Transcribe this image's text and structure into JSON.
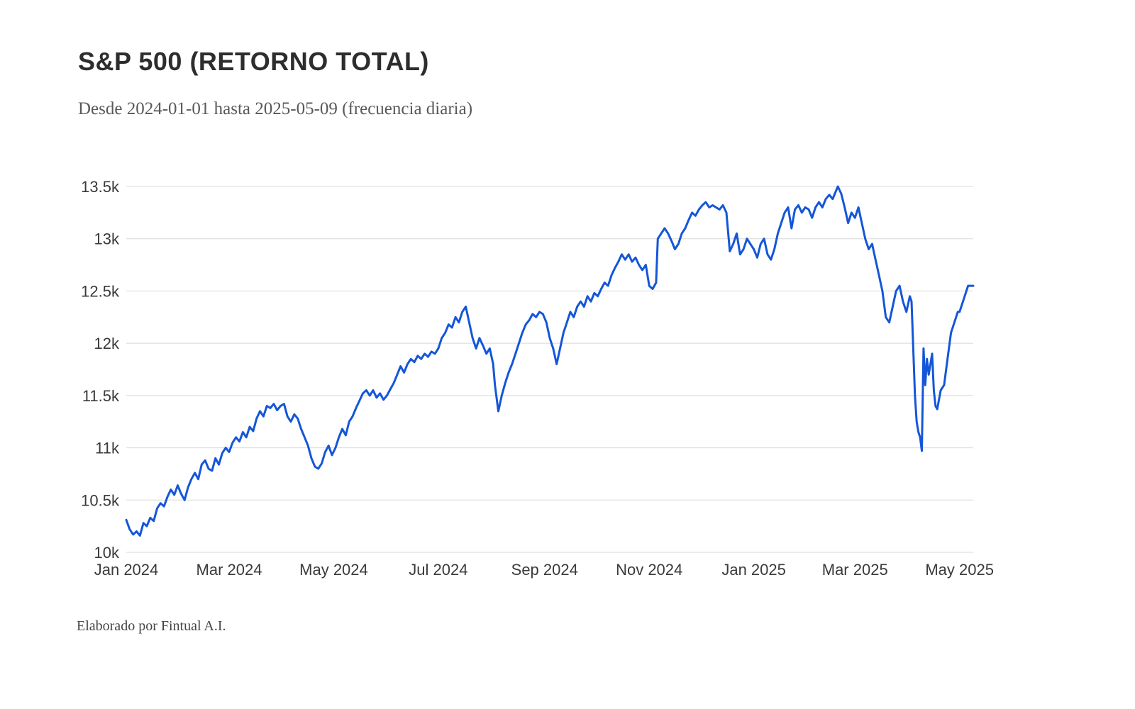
{
  "header": {
    "title": "S&P 500 (RETORNO TOTAL)",
    "subtitle": "Desde 2024-01-01 hasta 2025-05-09 (frecuencia diaria)"
  },
  "footer": {
    "credit": "Elaborado por Fintual A.I."
  },
  "chart_data": {
    "type": "line",
    "title": "S&P 500 (RETORNO TOTAL)",
    "subtitle": "Desde 2024-01-01 hasta 2025-05-09 (frecuencia diaria)",
    "x_unit": "days since 2024-01-01",
    "x_range": [
      0,
      494
    ],
    "ylim": [
      10000,
      13500
    ],
    "grid": "horizontal-only",
    "legend": "none",
    "line_color": "#1456d8",
    "grid_color": "#d8d8d8",
    "axis_text_color": "#3a3a3a",
    "y_ticks": [
      {
        "value": 10000,
        "label": "10k"
      },
      {
        "value": 10500,
        "label": "10.5k"
      },
      {
        "value": 11000,
        "label": "11k"
      },
      {
        "value": 11500,
        "label": "11.5k"
      },
      {
        "value": 12000,
        "label": "12k"
      },
      {
        "value": 12500,
        "label": "12.5k"
      },
      {
        "value": 13000,
        "label": "13k"
      },
      {
        "value": 13500,
        "label": "13.5k"
      }
    ],
    "x_ticks": [
      {
        "day": 0,
        "label": "Jan 2024"
      },
      {
        "day": 60,
        "label": "Mar 2024"
      },
      {
        "day": 121,
        "label": "May 2024"
      },
      {
        "day": 182,
        "label": "Jul 2024"
      },
      {
        "day": 244,
        "label": "Sep 2024"
      },
      {
        "day": 305,
        "label": "Nov 2024"
      },
      {
        "day": 366,
        "label": "Jan 2025"
      },
      {
        "day": 425,
        "label": "Mar 2025"
      },
      {
        "day": 486,
        "label": "May 2025"
      }
    ],
    "series": [
      {
        "name": "S&P 500 Retorno Total",
        "points": [
          [
            0,
            10310
          ],
          [
            2,
            10220
          ],
          [
            4,
            10170
          ],
          [
            6,
            10200
          ],
          [
            8,
            10160
          ],
          [
            10,
            10280
          ],
          [
            12,
            10250
          ],
          [
            14,
            10330
          ],
          [
            16,
            10300
          ],
          [
            18,
            10420
          ],
          [
            20,
            10470
          ],
          [
            22,
            10440
          ],
          [
            24,
            10530
          ],
          [
            26,
            10600
          ],
          [
            28,
            10550
          ],
          [
            30,
            10640
          ],
          [
            32,
            10560
          ],
          [
            34,
            10500
          ],
          [
            36,
            10620
          ],
          [
            38,
            10700
          ],
          [
            40,
            10760
          ],
          [
            42,
            10700
          ],
          [
            44,
            10840
          ],
          [
            46,
            10880
          ],
          [
            48,
            10800
          ],
          [
            50,
            10780
          ],
          [
            52,
            10900
          ],
          [
            54,
            10840
          ],
          [
            56,
            10950
          ],
          [
            58,
            11000
          ],
          [
            60,
            10960
          ],
          [
            62,
            11050
          ],
          [
            64,
            11100
          ],
          [
            66,
            11060
          ],
          [
            68,
            11150
          ],
          [
            70,
            11100
          ],
          [
            72,
            11200
          ],
          [
            74,
            11160
          ],
          [
            76,
            11280
          ],
          [
            78,
            11350
          ],
          [
            80,
            11300
          ],
          [
            82,
            11400
          ],
          [
            84,
            11380
          ],
          [
            86,
            11420
          ],
          [
            88,
            11360
          ],
          [
            90,
            11400
          ],
          [
            92,
            11420
          ],
          [
            94,
            11300
          ],
          [
            96,
            11250
          ],
          [
            98,
            11320
          ],
          [
            100,
            11280
          ],
          [
            102,
            11180
          ],
          [
            104,
            11100
          ],
          [
            106,
            11020
          ],
          [
            108,
            10900
          ],
          [
            110,
            10820
          ],
          [
            112,
            10800
          ],
          [
            114,
            10850
          ],
          [
            116,
            10960
          ],
          [
            118,
            11020
          ],
          [
            120,
            10930
          ],
          [
            122,
            11000
          ],
          [
            124,
            11100
          ],
          [
            126,
            11180
          ],
          [
            128,
            11120
          ],
          [
            130,
            11250
          ],
          [
            132,
            11300
          ],
          [
            134,
            11380
          ],
          [
            136,
            11450
          ],
          [
            138,
            11520
          ],
          [
            140,
            11550
          ],
          [
            142,
            11500
          ],
          [
            144,
            11550
          ],
          [
            146,
            11480
          ],
          [
            148,
            11520
          ],
          [
            150,
            11460
          ],
          [
            152,
            11500
          ],
          [
            154,
            11560
          ],
          [
            156,
            11620
          ],
          [
            158,
            11700
          ],
          [
            160,
            11780
          ],
          [
            162,
            11720
          ],
          [
            164,
            11800
          ],
          [
            166,
            11850
          ],
          [
            168,
            11820
          ],
          [
            170,
            11880
          ],
          [
            172,
            11850
          ],
          [
            174,
            11900
          ],
          [
            176,
            11870
          ],
          [
            178,
            11920
          ],
          [
            180,
            11900
          ],
          [
            182,
            11950
          ],
          [
            184,
            12050
          ],
          [
            186,
            12100
          ],
          [
            188,
            12180
          ],
          [
            190,
            12150
          ],
          [
            192,
            12250
          ],
          [
            194,
            12200
          ],
          [
            196,
            12300
          ],
          [
            198,
            12350
          ],
          [
            200,
            12200
          ],
          [
            202,
            12050
          ],
          [
            204,
            11950
          ],
          [
            206,
            12050
          ],
          [
            208,
            11980
          ],
          [
            210,
            11900
          ],
          [
            212,
            11950
          ],
          [
            214,
            11800
          ],
          [
            215,
            11600
          ],
          [
            217,
            11350
          ],
          [
            219,
            11500
          ],
          [
            221,
            11620
          ],
          [
            223,
            11720
          ],
          [
            225,
            11800
          ],
          [
            227,
            11900
          ],
          [
            229,
            12000
          ],
          [
            231,
            12100
          ],
          [
            233,
            12180
          ],
          [
            235,
            12220
          ],
          [
            237,
            12280
          ],
          [
            239,
            12250
          ],
          [
            241,
            12300
          ],
          [
            243,
            12280
          ],
          [
            245,
            12200
          ],
          [
            247,
            12050
          ],
          [
            249,
            11950
          ],
          [
            251,
            11800
          ],
          [
            253,
            11950
          ],
          [
            255,
            12100
          ],
          [
            257,
            12200
          ],
          [
            259,
            12300
          ],
          [
            261,
            12250
          ],
          [
            263,
            12350
          ],
          [
            265,
            12400
          ],
          [
            267,
            12350
          ],
          [
            269,
            12450
          ],
          [
            271,
            12400
          ],
          [
            273,
            12480
          ],
          [
            275,
            12450
          ],
          [
            277,
            12520
          ],
          [
            279,
            12580
          ],
          [
            281,
            12550
          ],
          [
            283,
            12650
          ],
          [
            285,
            12720
          ],
          [
            287,
            12780
          ],
          [
            289,
            12850
          ],
          [
            291,
            12800
          ],
          [
            293,
            12850
          ],
          [
            295,
            12780
          ],
          [
            297,
            12820
          ],
          [
            299,
            12750
          ],
          [
            301,
            12700
          ],
          [
            303,
            12750
          ],
          [
            305,
            12550
          ],
          [
            307,
            12520
          ],
          [
            309,
            12580
          ],
          [
            310,
            13000
          ],
          [
            312,
            13050
          ],
          [
            314,
            13100
          ],
          [
            316,
            13050
          ],
          [
            318,
            12980
          ],
          [
            320,
            12900
          ],
          [
            322,
            12950
          ],
          [
            324,
            13050
          ],
          [
            326,
            13100
          ],
          [
            328,
            13180
          ],
          [
            330,
            13250
          ],
          [
            332,
            13220
          ],
          [
            334,
            13280
          ],
          [
            336,
            13320
          ],
          [
            338,
            13350
          ],
          [
            340,
            13300
          ],
          [
            342,
            13320
          ],
          [
            344,
            13300
          ],
          [
            346,
            13280
          ],
          [
            348,
            13320
          ],
          [
            350,
            13250
          ],
          [
            352,
            12880
          ],
          [
            354,
            12950
          ],
          [
            356,
            13050
          ],
          [
            358,
            12850
          ],
          [
            360,
            12900
          ],
          [
            362,
            13000
          ],
          [
            364,
            12950
          ],
          [
            366,
            12900
          ],
          [
            368,
            12820
          ],
          [
            370,
            12950
          ],
          [
            372,
            13000
          ],
          [
            374,
            12850
          ],
          [
            376,
            12800
          ],
          [
            378,
            12900
          ],
          [
            380,
            13050
          ],
          [
            382,
            13150
          ],
          [
            384,
            13250
          ],
          [
            386,
            13300
          ],
          [
            388,
            13100
          ],
          [
            390,
            13280
          ],
          [
            392,
            13320
          ],
          [
            394,
            13250
          ],
          [
            396,
            13300
          ],
          [
            398,
            13280
          ],
          [
            400,
            13200
          ],
          [
            402,
            13300
          ],
          [
            404,
            13350
          ],
          [
            406,
            13300
          ],
          [
            408,
            13380
          ],
          [
            410,
            13420
          ],
          [
            412,
            13380
          ],
          [
            414,
            13460
          ],
          [
            415,
            13500
          ],
          [
            417,
            13430
          ],
          [
            419,
            13300
          ],
          [
            421,
            13150
          ],
          [
            423,
            13250
          ],
          [
            425,
            13200
          ],
          [
            427,
            13300
          ],
          [
            429,
            13150
          ],
          [
            431,
            13000
          ],
          [
            433,
            12900
          ],
          [
            435,
            12950
          ],
          [
            437,
            12800
          ],
          [
            439,
            12650
          ],
          [
            441,
            12500
          ],
          [
            443,
            12250
          ],
          [
            445,
            12200
          ],
          [
            447,
            12350
          ],
          [
            449,
            12500
          ],
          [
            451,
            12550
          ],
          [
            453,
            12400
          ],
          [
            455,
            12300
          ],
          [
            457,
            12450
          ],
          [
            458,
            12400
          ],
          [
            459,
            11950
          ],
          [
            460,
            11500
          ],
          [
            461,
            11250
          ],
          [
            462,
            11150
          ],
          [
            463,
            11100
          ],
          [
            464,
            10970
          ],
          [
            465,
            11950
          ],
          [
            466,
            11600
          ],
          [
            467,
            11850
          ],
          [
            468,
            11700
          ],
          [
            470,
            11900
          ],
          [
            471,
            11550
          ],
          [
            472,
            11400
          ],
          [
            473,
            11370
          ],
          [
            475,
            11550
          ],
          [
            477,
            11600
          ],
          [
            479,
            11850
          ],
          [
            481,
            12100
          ],
          [
            483,
            12200
          ],
          [
            485,
            12300
          ],
          [
            486,
            12300
          ],
          [
            487,
            12350
          ],
          [
            488,
            12400
          ],
          [
            489,
            12450
          ],
          [
            490,
            12500
          ],
          [
            491,
            12550
          ],
          [
            492,
            12550
          ],
          [
            493,
            12550
          ],
          [
            494,
            12550
          ]
        ]
      }
    ]
  }
}
